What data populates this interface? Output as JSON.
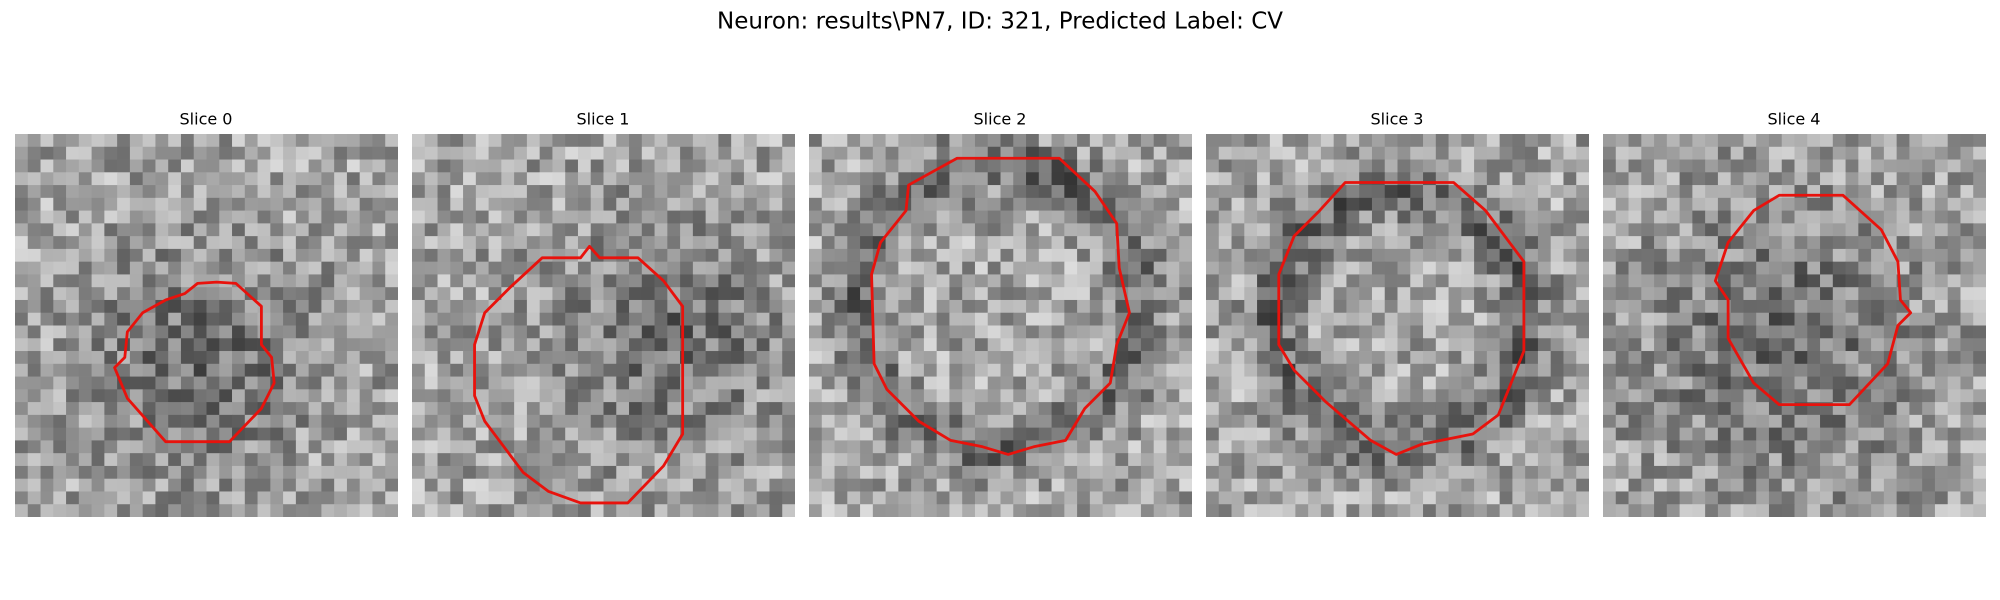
{
  "title": "Neuron: results\\PN7, ID: 321, Predicted Label: CV",
  "panels": [
    {
      "title": "Slice 0"
    },
    {
      "title": "Slice 1"
    },
    {
      "title": "Slice 2"
    },
    {
      "title": "Slice 3"
    },
    {
      "title": "Slice 4"
    }
  ]
}
